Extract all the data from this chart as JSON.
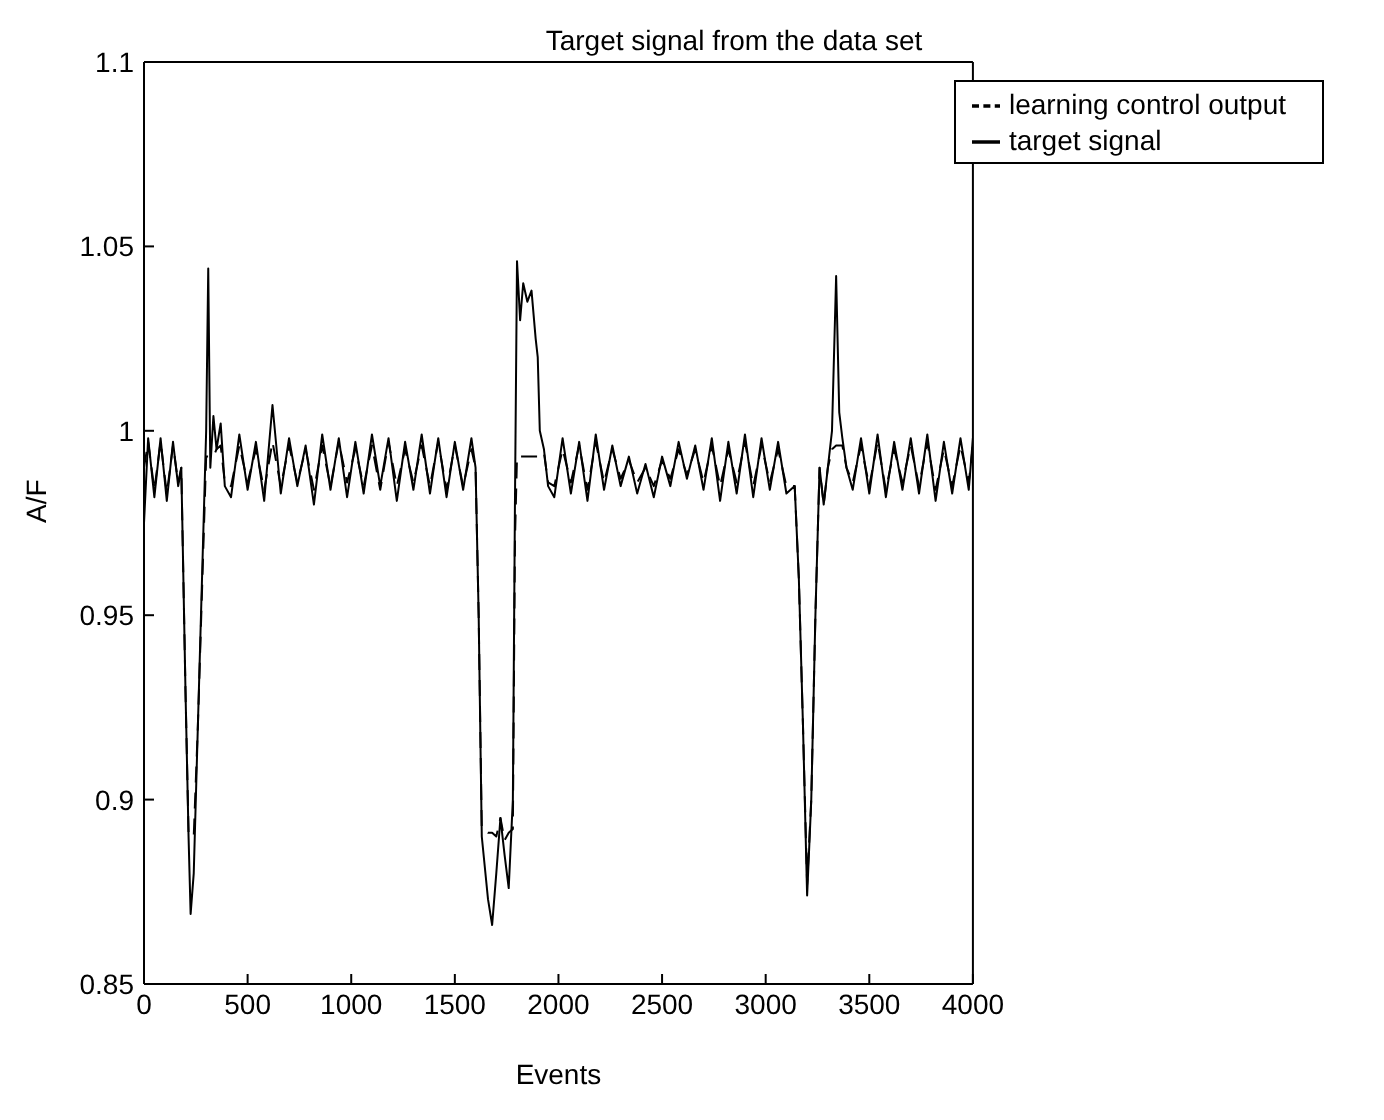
{
  "chart_data": {
    "type": "line",
    "title": "Target signal from the data set",
    "xlabel": "Events",
    "ylabel": "A/F",
    "x": [
      0,
      20,
      50,
      80,
      110,
      140,
      165,
      180,
      200,
      215,
      225,
      240,
      260,
      290,
      300,
      310,
      320,
      335,
      350,
      370,
      390,
      420,
      460,
      500,
      540,
      580,
      620,
      660,
      700,
      740,
      780,
      820,
      860,
      900,
      940,
      980,
      1020,
      1060,
      1100,
      1140,
      1180,
      1220,
      1260,
      1300,
      1340,
      1380,
      1420,
      1460,
      1500,
      1540,
      1580,
      1600,
      1615,
      1630,
      1660,
      1680,
      1700,
      1720,
      1740,
      1760,
      1780,
      1790,
      1800,
      1815,
      1830,
      1850,
      1870,
      1890,
      1900,
      1910,
      1930,
      1950,
      1980,
      2020,
      2060,
      2100,
      2140,
      2180,
      2220,
      2260,
      2300,
      2340,
      2380,
      2420,
      2460,
      2500,
      2540,
      2580,
      2620,
      2660,
      2700,
      2740,
      2780,
      2820,
      2860,
      2900,
      2940,
      2980,
      3020,
      3060,
      3100,
      3140,
      3160,
      3180,
      3200,
      3220,
      3240,
      3260,
      3280,
      3300,
      3320,
      3340,
      3355,
      3370,
      3390,
      3420,
      3460,
      3500,
      3540,
      3580,
      3620,
      3660,
      3700,
      3740,
      3780,
      3820,
      3860,
      3900,
      3940,
      3980,
      4000
    ],
    "series": [
      {
        "name": "target signal",
        "color": "#000000",
        "line_style": "solid",
        "values": [
          0.975,
          0.998,
          0.982,
          0.998,
          0.981,
          0.997,
          0.985,
          0.99,
          0.93,
          0.89,
          0.869,
          0.88,
          0.92,
          0.98,
          1.0,
          1.044,
          0.99,
          1.004,
          0.995,
          1.002,
          0.985,
          0.982,
          0.999,
          0.984,
          0.997,
          0.981,
          1.007,
          0.983,
          0.998,
          0.985,
          0.996,
          0.98,
          0.999,
          0.984,
          0.998,
          0.982,
          0.997,
          0.983,
          0.999,
          0.985,
          0.998,
          0.981,
          0.997,
          0.984,
          0.999,
          0.983,
          0.998,
          0.982,
          0.997,
          0.984,
          0.998,
          0.99,
          0.95,
          0.89,
          0.873,
          0.866,
          0.88,
          0.895,
          0.885,
          0.876,
          0.9,
          0.98,
          1.046,
          1.03,
          1.04,
          1.035,
          1.038,
          1.025,
          1.02,
          1.0,
          0.995,
          0.985,
          0.982,
          0.998,
          0.983,
          0.997,
          0.981,
          0.999,
          0.984,
          0.996,
          0.985,
          0.993,
          0.983,
          0.991,
          0.982,
          0.993,
          0.985,
          0.997,
          0.987,
          0.996,
          0.984,
          0.998,
          0.981,
          0.997,
          0.983,
          0.999,
          0.982,
          0.998,
          0.984,
          0.997,
          0.983,
          0.985,
          0.96,
          0.92,
          0.874,
          0.9,
          0.95,
          0.99,
          0.98,
          0.99,
          1.0,
          1.042,
          1.005,
          0.998,
          0.99,
          0.984,
          0.998,
          0.983,
          0.999,
          0.982,
          0.997,
          0.984,
          0.998,
          0.983,
          0.999,
          0.981,
          0.997,
          0.983,
          0.998,
          0.984,
          0.998
        ]
      },
      {
        "name": "learning control output",
        "color": "#000000",
        "line_style": "dashed",
        "values": [
          0.99,
          0.997,
          0.984,
          0.997,
          0.983,
          0.996,
          0.986,
          0.99,
          0.93,
          0.891,
          0.89,
          0.89,
          0.92,
          0.975,
          0.993,
          0.993,
          0.993,
          0.993,
          0.995,
          0.996,
          0.986,
          0.985,
          0.996,
          0.986,
          0.995,
          0.984,
          0.997,
          0.985,
          0.996,
          0.986,
          0.995,
          0.984,
          0.996,
          0.985,
          0.997,
          0.986,
          0.995,
          0.985,
          0.996,
          0.984,
          0.997,
          0.985,
          0.995,
          0.986,
          0.996,
          0.985,
          0.997,
          0.984,
          0.996,
          0.985,
          0.995,
          0.99,
          0.95,
          0.892,
          0.891,
          0.891,
          0.89,
          0.895,
          0.889,
          0.891,
          0.892,
          0.97,
          0.993,
          0.993,
          0.993,
          0.993,
          0.993,
          0.993,
          0.993,
          0.993,
          0.994,
          0.986,
          0.985,
          0.995,
          0.986,
          0.996,
          0.984,
          0.997,
          0.986,
          0.995,
          0.987,
          0.992,
          0.986,
          0.99,
          0.985,
          0.992,
          0.987,
          0.995,
          0.988,
          0.995,
          0.986,
          0.996,
          0.985,
          0.995,
          0.986,
          0.997,
          0.985,
          0.996,
          0.986,
          0.995,
          0.985,
          0.985,
          0.96,
          0.92,
          0.877,
          0.9,
          0.95,
          0.99,
          0.98,
          0.99,
          0.995,
          0.996,
          0.996,
          0.996,
          0.99,
          0.986,
          0.996,
          0.985,
          0.997,
          0.984,
          0.995,
          0.986,
          0.996,
          0.985,
          0.997,
          0.984,
          0.995,
          0.985,
          0.996,
          0.986,
          0.996
        ]
      }
    ],
    "xlim": [
      0,
      4000
    ],
    "xticks": [
      0,
      500,
      1000,
      1500,
      2000,
      2500,
      3000,
      3500,
      4000
    ],
    "ylim": [
      0.85,
      1.1
    ],
    "yticks": [
      0.85,
      0.9,
      0.95,
      1,
      1.05,
      1.1
    ],
    "legend": "top right",
    "marker": "none"
  }
}
